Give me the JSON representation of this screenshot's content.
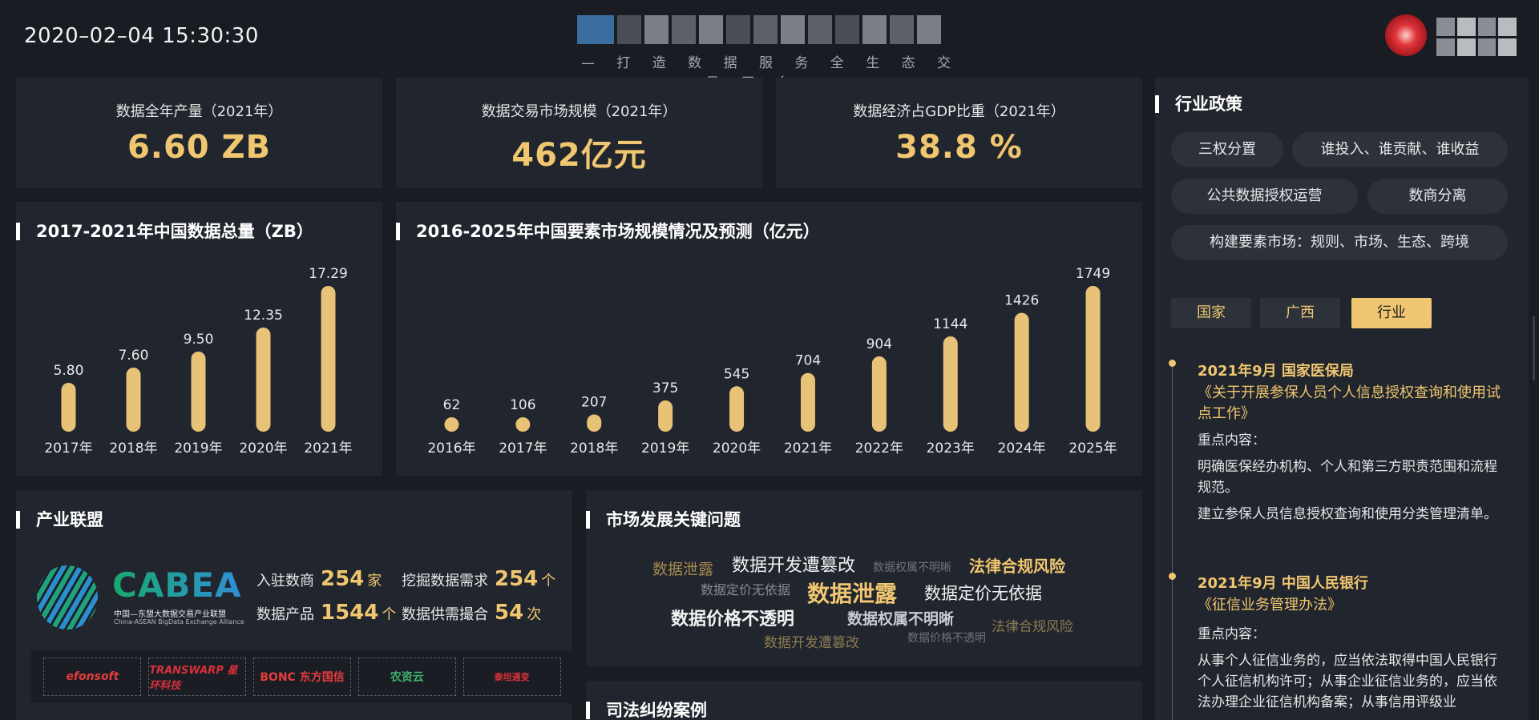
{
  "header": {
    "datetime": "2020–02–04 15:30:30",
    "subtitle": "— 打 造 数 据 服 务 全 生 态 交 易 平 台 —"
  },
  "stats": [
    {
      "title": "数据全年产量（2021年）",
      "value": "6.60 ZB"
    },
    {
      "title": "数据交易市场规模（2021年）",
      "value": "462亿元"
    },
    {
      "title": "数据经济占GDP比重（2021年）",
      "value": "38.8 %"
    }
  ],
  "chart_data": [
    {
      "type": "bar",
      "title": "2017-2021年中国数据总量（ZB）",
      "categories": [
        "2017年",
        "2018年",
        "2019年",
        "2020年",
        "2021年"
      ],
      "values": [
        5.8,
        7.6,
        9.5,
        12.35,
        17.29
      ],
      "value_labels": [
        "5.80",
        "7.60",
        "9.50",
        "12.35",
        "17.29"
      ],
      "ylim": [
        0,
        17.29
      ],
      "color": "#e8c277"
    },
    {
      "type": "bar",
      "title": "2016-2025年中国要素市场规模情况及预测（亿元）",
      "categories": [
        "2016年",
        "2017年",
        "2018年",
        "2019年",
        "2020年",
        "2021年",
        "2022年",
        "2023年",
        "2024年",
        "2025年"
      ],
      "values": [
        62,
        106,
        207,
        375,
        545,
        704,
        904,
        1144,
        1426,
        1749
      ],
      "value_labels": [
        "62",
        "106",
        "207",
        "375",
        "545",
        "704",
        "904",
        "1144",
        "1426",
        "1749"
      ],
      "ylim": [
        0,
        1749
      ],
      "color": "#e8c277"
    }
  ],
  "alliance": {
    "title": "产业联盟",
    "logo_name": "CABEA",
    "logo_cn": "中国—东盟大数据交易产业联盟",
    "logo_en": "China-ASEAN BigData Exchange Alliance",
    "metrics": [
      {
        "label": "入驻数商",
        "value": "254",
        "unit": "家"
      },
      {
        "label": "挖掘数据需求",
        "value": "254",
        "unit": "个"
      },
      {
        "label": "数据产品",
        "value": "1544",
        "unit": "个"
      },
      {
        "label": "数据供需撮合",
        "value": "54",
        "unit": "次"
      }
    ],
    "partners": [
      "efonsoft",
      "TRANSWARP 星环科技",
      "BONC 东方国信",
      "农资云",
      "泰坦通变"
    ]
  },
  "market_issues": {
    "title": "市场发展关键问题",
    "words": [
      "数据泄露",
      "数据开发遭篡改",
      "数据权属不明晰",
      "法律合规风险",
      "数据定价无依据",
      "数据泄露",
      "数据定价无依据",
      "数据价格不透明",
      "数据权属不明晰",
      "法律合规风险",
      "数据开发遭篡改",
      "数据价格不透明"
    ]
  },
  "judicial": {
    "title": "司法纠纷案例"
  },
  "policy": {
    "title": "行业政策",
    "chips": [
      "三权分置",
      "谁投入、谁贡献、谁收益",
      "公共数据授权运营",
      "数商分离",
      "构建要素市场：规则、市场、生态、跨境"
    ],
    "tabs": [
      "国家",
      "广西",
      "行业"
    ],
    "active_tab": "行业",
    "items": [
      {
        "head": "2021年9月    国家医保局",
        "doc": "《关于开展参保人员个人信息授权查询和使用试点工作》",
        "key_label": "重点内容：",
        "points": [
          "明确医保经办机构、个人和第三方职责范围和流程规范。",
          "建立参保人员信息授权查询和使用分类管理清单。"
        ]
      },
      {
        "head": "2021年9月    中国人民银行",
        "doc": "《征信业务管理办法》",
        "key_label": "重点内容：",
        "points": [
          "从事个人征信业务的，应当依法取得中国人民银行个人征信机构许可；从事企业征信业务的，应当依法办理企业征信机构备案；从事信用评级业"
        ]
      }
    ]
  }
}
